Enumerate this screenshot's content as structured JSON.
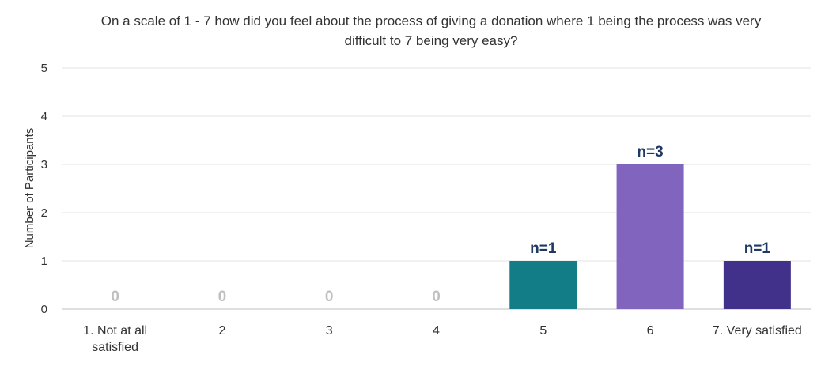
{
  "chart_data": {
    "type": "bar",
    "title": "On a scale of 1 - 7 how did you feel about the process of giving a donation where 1 being the process was very difficult to 7 being very easy?",
    "ylabel": "Number of Participants",
    "xlabel": "",
    "ylim": [
      0,
      5
    ],
    "yticks": [
      0,
      1,
      2,
      3,
      4,
      5
    ],
    "grid": true,
    "categories": [
      [
        "1. Not at all",
        "satisfied"
      ],
      [
        "2"
      ],
      [
        "3"
      ],
      [
        "4"
      ],
      [
        "5"
      ],
      [
        "6"
      ],
      [
        "7. Very satisfied"
      ]
    ],
    "values": [
      0,
      0,
      0,
      0,
      1,
      3,
      1
    ],
    "data_labels": [
      "0",
      "0",
      "0",
      "0",
      "n=1",
      "n=3",
      "n=1"
    ],
    "bar_colors": [
      "#c8c8c8",
      "#c8c8c8",
      "#c8c8c8",
      "#c8c8c8",
      "#127d86",
      "#8064bd",
      "#42318a"
    ],
    "label_colors": [
      "#c0c0c0",
      "#c0c0c0",
      "#c0c0c0",
      "#c0c0c0",
      "#1f3864",
      "#1f3864",
      "#1f3864"
    ]
  }
}
